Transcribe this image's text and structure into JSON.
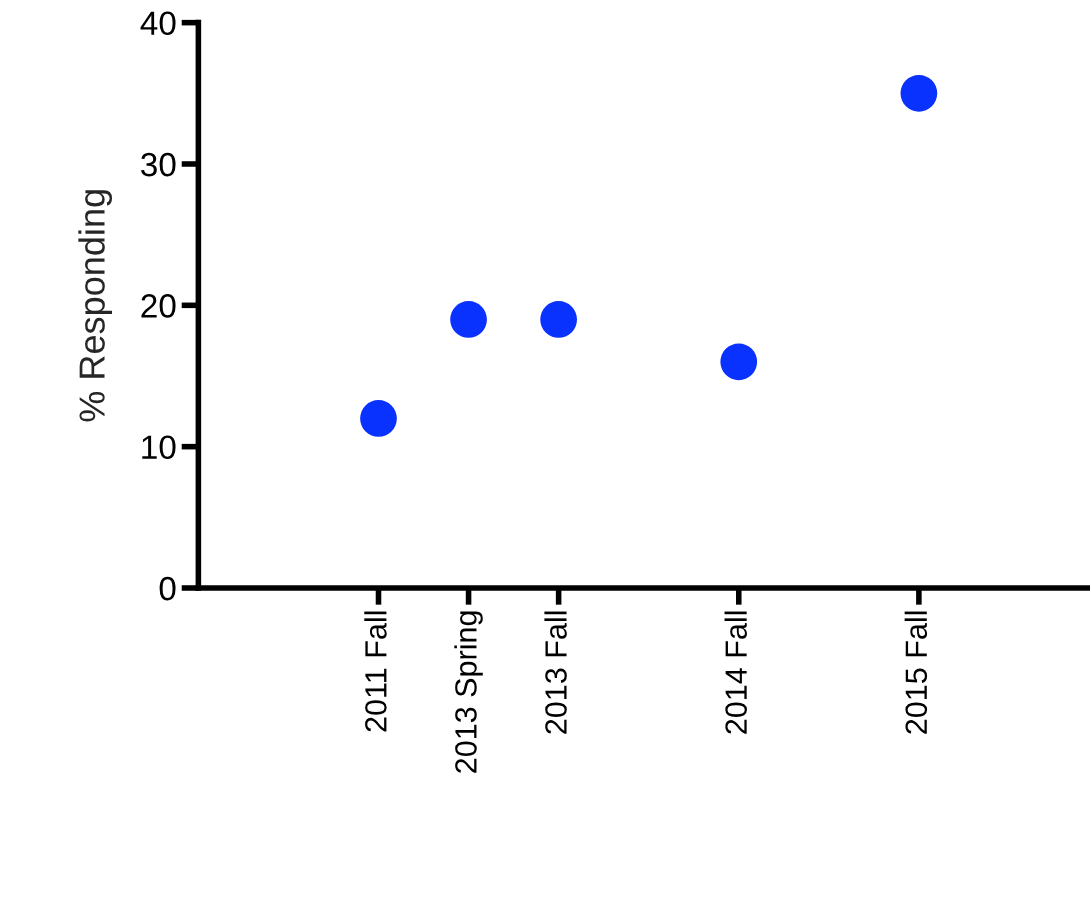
{
  "chart_data": {
    "type": "scatter",
    "ylabel": "% Responding",
    "categories": [
      null,
      null,
      "2011 Fall",
      "2013 Spring",
      "2013 Fall",
      null,
      "2014 Fall",
      null,
      "2015 Fall",
      null
    ],
    "series": [
      {
        "color": "#0a32ff",
        "values": [
          null,
          null,
          12,
          19,
          19,
          null,
          16,
          null,
          35,
          null
        ]
      }
    ],
    "ylim": [
      0,
      40
    ],
    "yticks": [
      0,
      10,
      20,
      30,
      40
    ],
    "marker": "circle",
    "grid": false,
    "legend": false
  }
}
